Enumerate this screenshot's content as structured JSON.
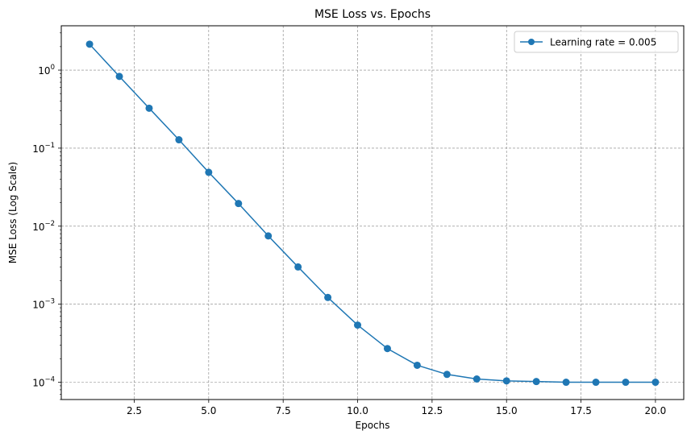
{
  "chart_data": {
    "type": "line",
    "title": "MSE Loss vs. Epochs",
    "xlabel": "Epochs",
    "ylabel": "MSE Loss (Log Scale)",
    "x_scale": "linear",
    "y_scale": "log",
    "xlim": [
      0.05,
      20.95
    ],
    "ylim": [
      6e-05,
      3.7
    ],
    "x_ticks": [
      2.5,
      5.0,
      7.5,
      10.0,
      12.5,
      15.0,
      17.5,
      20.0
    ],
    "x_tick_labels": [
      "2.5",
      "5.0",
      "7.5",
      "10.0",
      "12.5",
      "15.0",
      "17.5",
      "20.0"
    ],
    "y_ticks": [
      {
        "value": 0.0001,
        "base": "10",
        "exp": "−4"
      },
      {
        "value": 0.001,
        "base": "10",
        "exp": "−3"
      },
      {
        "value": 0.01,
        "base": "10",
        "exp": "−2"
      },
      {
        "value": 0.1,
        "base": "10",
        "exp": "−1"
      },
      {
        "value": 1,
        "base": "10",
        "exp": "0"
      }
    ],
    "grid": true,
    "legend_position": "top-right",
    "series": [
      {
        "name": "Learning rate = 0.005",
        "color": "#1f77b4",
        "marker": "circle",
        "x": [
          1,
          2,
          3,
          4,
          5,
          6,
          7,
          8,
          9,
          10,
          11,
          12,
          13,
          14,
          15,
          16,
          17,
          18,
          19,
          20
        ],
        "y": [
          2.15,
          0.83,
          0.325,
          0.128,
          0.049,
          0.0195,
          0.0075,
          0.003,
          0.00122,
          0.00054,
          0.00027,
          0.000165,
          0.000126,
          0.00011,
          0.000104,
          0.000102,
          0.0001,
          0.0001,
          0.0001,
          0.0001
        ]
      }
    ]
  }
}
